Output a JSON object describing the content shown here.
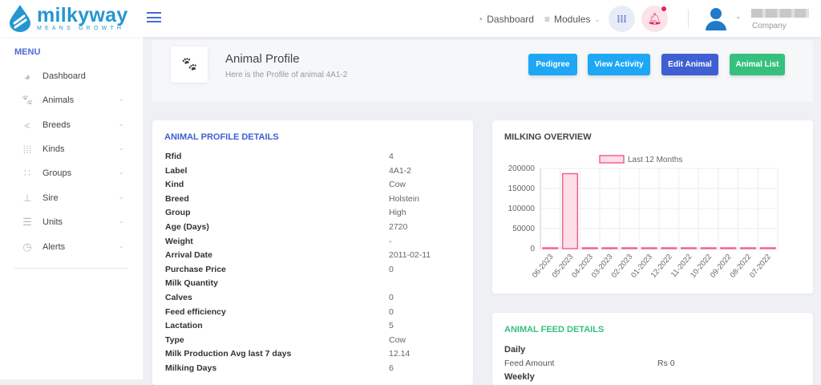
{
  "brand": {
    "name": "milkyway",
    "tagline": "MEANS GROWTH"
  },
  "header": {
    "dashboard": "Dashboard",
    "modules": "Modules",
    "company": "Company",
    "notification_dot": true
  },
  "sidebar": {
    "title": "MENU",
    "items": [
      {
        "label": "Dashboard",
        "icon": "pie-chart-icon",
        "chevron": false
      },
      {
        "label": "Animals",
        "icon": "paw-icon",
        "chevron": true
      },
      {
        "label": "Breeds",
        "icon": "share-icon",
        "chevron": true
      },
      {
        "label": "Kinds",
        "icon": "grid-icon",
        "chevron": true
      },
      {
        "label": "Groups",
        "icon": "dots-grid-icon",
        "chevron": true
      },
      {
        "label": "Sire",
        "icon": "sitemap-icon",
        "chevron": true
      },
      {
        "label": "Units",
        "icon": "sliders-icon",
        "chevron": true
      },
      {
        "label": "Alerts",
        "icon": "clock-icon",
        "chevron": true
      }
    ]
  },
  "page": {
    "title": "Animal Profile",
    "subtitle": "Here is the Profile of animal 4A1-2",
    "buttons": [
      {
        "label": "Pedigree",
        "color": "#1ea7f5"
      },
      {
        "label": "View Activity",
        "color": "#1ea7f5"
      },
      {
        "label": "Edit Animal",
        "color": "#3f5fd2"
      },
      {
        "label": "Animal List",
        "color": "#35c07e"
      }
    ]
  },
  "profile": {
    "title": "ANIMAL PROFILE DETAILS",
    "rows": [
      {
        "label": "Rfid",
        "value": "4"
      },
      {
        "label": "Label",
        "value": "4A1-2"
      },
      {
        "label": "Kind",
        "value": "Cow"
      },
      {
        "label": "Breed",
        "value": "Holstein"
      },
      {
        "label": "Group",
        "value": "High"
      },
      {
        "label": "Age (Days)",
        "value": "2720"
      },
      {
        "label": "Weight",
        "value": "-"
      },
      {
        "label": "Arrival Date",
        "value": "2011-02-11"
      },
      {
        "label": "Purchase Price",
        "value": "0"
      },
      {
        "label": "Milk Quantity",
        "value": ""
      },
      {
        "label": "Calves",
        "value": "0"
      },
      {
        "label": "Feed efficiency",
        "value": "0"
      },
      {
        "label": "Lactation",
        "value": "5"
      },
      {
        "label": "Type",
        "value": "Cow"
      },
      {
        "label": "Milk Production Avg last 7 days",
        "value": "12.14"
      },
      {
        "label": "Milking Days",
        "value": "6"
      }
    ]
  },
  "milking": {
    "title": "MILKING OVERVIEW"
  },
  "chart_data": {
    "type": "bar",
    "categories": [
      "06-2023",
      "05-2023",
      "04-2023",
      "03-2023",
      "02-2023",
      "01-2023",
      "12-2022",
      "11-2022",
      "10-2022",
      "09-2022",
      "08-2022",
      "07-2022"
    ],
    "series": [
      {
        "name": "Last 12 Months",
        "values": [
          0,
          187000,
          0,
          0,
          0,
          0,
          0,
          0,
          0,
          0,
          0,
          0
        ]
      }
    ],
    "yticks": [
      "0",
      "50000",
      "100000",
      "150000",
      "200000"
    ],
    "ylim": [
      0,
      200000
    ],
    "legend": "top",
    "grid": true,
    "color": "#f06292"
  },
  "feed": {
    "title": "ANIMAL FEED DETAILS",
    "daily": "Daily",
    "feed_amount_label": "Feed Amount",
    "feed_amount": "Rs 0",
    "weekly": "Weekly"
  }
}
